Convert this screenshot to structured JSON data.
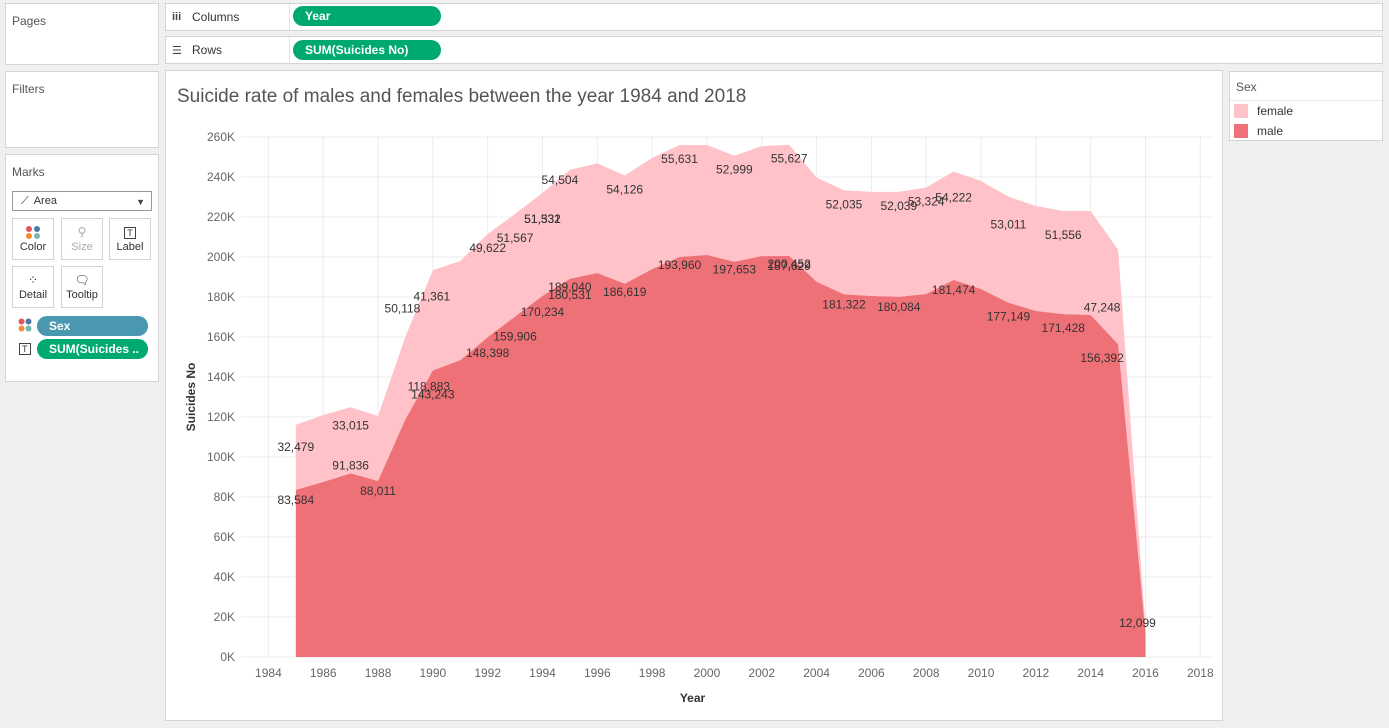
{
  "panels": {
    "pages_label": "Pages",
    "filters_label": "Filters",
    "marks_label": "Marks",
    "mark_type": "Area",
    "mark_buttons": [
      {
        "label": "Color",
        "icon": "color-dots-icon"
      },
      {
        "label": "Size",
        "icon": "size-icon"
      },
      {
        "label": "Label",
        "icon": "label-T-icon"
      },
      {
        "label": "Detail",
        "icon": "detail-dots-icon"
      },
      {
        "label": "Tooltip",
        "icon": "tooltip-icon"
      }
    ],
    "mark_pills": [
      {
        "label": "Sex",
        "color": "#4a98b0"
      },
      {
        "label": "SUM(Suicides ..",
        "color": "#00a96e"
      }
    ]
  },
  "shelves": {
    "columns_label": "Columns",
    "columns_pill": "Year",
    "rows_label": "Rows",
    "rows_pill": "SUM(Suicides No)"
  },
  "legend": {
    "title": "Sex",
    "items": [
      {
        "label": "female",
        "color": "#ffc2c8"
      },
      {
        "label": "male",
        "color": "#ee7177"
      }
    ]
  },
  "chart_data": {
    "type": "area",
    "stacked": true,
    "title": "Suicide rate of males and females between the year 1984 and 2018",
    "xlabel": "Year",
    "ylabel": "Suicides No",
    "xlim": [
      1983,
      2018.5
    ],
    "ylim": [
      0,
      260000
    ],
    "x_ticks": [
      "1984",
      "1986",
      "1988",
      "1990",
      "1992",
      "1994",
      "1996",
      "1998",
      "2000",
      "2002",
      "2004",
      "2006",
      "2008",
      "2010",
      "2012",
      "2014",
      "2016",
      "2018"
    ],
    "y_ticks": [
      "0K",
      "20K",
      "40K",
      "60K",
      "80K",
      "100K",
      "120K",
      "140K",
      "160K",
      "180K",
      "200K",
      "220K",
      "240K",
      "260K"
    ],
    "x": [
      1985,
      1986,
      1987,
      1988,
      1989,
      1990,
      1991,
      1992,
      1993,
      1994,
      1995,
      1996,
      1997,
      1998,
      1999,
      2000,
      2001,
      2002,
      2003,
      2004,
      2005,
      2006,
      2007,
      2008,
      2009,
      2010,
      2011,
      2012,
      2013,
      2014,
      2015,
      2016
    ],
    "series": [
      {
        "name": "male",
        "color": "#ee7177",
        "values": [
          83584,
          87500,
          91836,
          88011,
          118883,
          143243,
          148398,
          159906,
          170234,
          180531,
          189040,
          192000,
          186619,
          193960,
          200000,
          201000,
          197653,
          200452,
          200500,
          187629,
          181322,
          180500,
          180084,
          181474,
          188500,
          184000,
          177149,
          173000,
          171428,
          171000,
          156392,
          12099
        ]
      },
      {
        "name": "female",
        "color": "#ffc2c8",
        "values": [
          32479,
          33500,
          33015,
          32500,
          41361,
          50118,
          49622,
          51567,
          51331,
          51532,
          54504,
          54800,
          54126,
          55631,
          56000,
          55000,
          52999,
          55000,
          55627,
          52035,
          52035,
          52039,
          52500,
          53324,
          54222,
          54000,
          53011,
          52500,
          51556,
          52000,
          47248,
          2500
        ]
      }
    ],
    "data_labels": [
      {
        "series": "male",
        "x": 1985,
        "text": "83,584"
      },
      {
        "series": "male",
        "x": 1987,
        "text": "91,836"
      },
      {
        "series": "male",
        "x": 1988,
        "text": "88,011"
      },
      {
        "series": "male",
        "x": 1990,
        "text": "118,883"
      },
      {
        "series": "male",
        "x": 1990,
        "text": "143,243"
      },
      {
        "series": "male",
        "x": 1992,
        "text": "148,398"
      },
      {
        "series": "male",
        "x": 1993,
        "text": "159,906"
      },
      {
        "series": "male",
        "x": 1994,
        "text": "170,234"
      },
      {
        "series": "male",
        "x": 1995,
        "text": "180,531"
      },
      {
        "series": "male",
        "x": 1995,
        "text": "189,040"
      },
      {
        "series": "male",
        "x": 1997,
        "text": "186,619"
      },
      {
        "series": "male",
        "x": 1999,
        "text": "193,960"
      },
      {
        "series": "male",
        "x": 2001,
        "text": "197,653"
      },
      {
        "series": "male",
        "x": 2003,
        "text": "200,452"
      },
      {
        "series": "male",
        "x": 2003,
        "text": "187,629"
      },
      {
        "series": "male",
        "x": 2005,
        "text": "181,322"
      },
      {
        "series": "male",
        "x": 2007,
        "text": "180,084"
      },
      {
        "series": "male",
        "x": 2009,
        "text": "181,474"
      },
      {
        "series": "male",
        "x": 2011,
        "text": "177,149"
      },
      {
        "series": "male",
        "x": 2013,
        "text": "171,428"
      },
      {
        "series": "male",
        "x": 2015,
        "text": "156,392"
      },
      {
        "series": "male",
        "x": 2016,
        "text": "12,099"
      },
      {
        "series": "female",
        "x": 1985,
        "text": "32,479"
      },
      {
        "series": "female",
        "x": 1987,
        "text": "33,015"
      },
      {
        "series": "female",
        "x": 1990,
        "text": "41,361"
      },
      {
        "series": "female",
        "x": 1989,
        "text": "50,118"
      },
      {
        "series": "female",
        "x": 1992,
        "text": "49,622"
      },
      {
        "series": "female",
        "x": 1993,
        "text": "51,567"
      },
      {
        "series": "female",
        "x": 1994,
        "text": "51,331"
      },
      {
        "series": "female",
        "x": 1994,
        "text": "51,532"
      },
      {
        "series": "female",
        "x": 1995,
        "text": "54,504"
      },
      {
        "series": "female",
        "x": 1997,
        "text": "54,126"
      },
      {
        "series": "female",
        "x": 1999,
        "text": "55,631"
      },
      {
        "series": "female",
        "x": 2001,
        "text": "52,999"
      },
      {
        "series": "female",
        "x": 2003,
        "text": "55,627"
      },
      {
        "series": "female",
        "x": 2005,
        "text": "52,035"
      },
      {
        "series": "female",
        "x": 2007,
        "text": "52,039"
      },
      {
        "series": "female",
        "x": 2008,
        "text": "53,324"
      },
      {
        "series": "female",
        "x": 2009,
        "text": "54,222"
      },
      {
        "series": "female",
        "x": 2011,
        "text": "53,011"
      },
      {
        "series": "female",
        "x": 2013,
        "text": "51,556"
      },
      {
        "series": "female",
        "x": 2015,
        "text": "47,248"
      }
    ],
    "grid": true,
    "legend_position": "right"
  }
}
